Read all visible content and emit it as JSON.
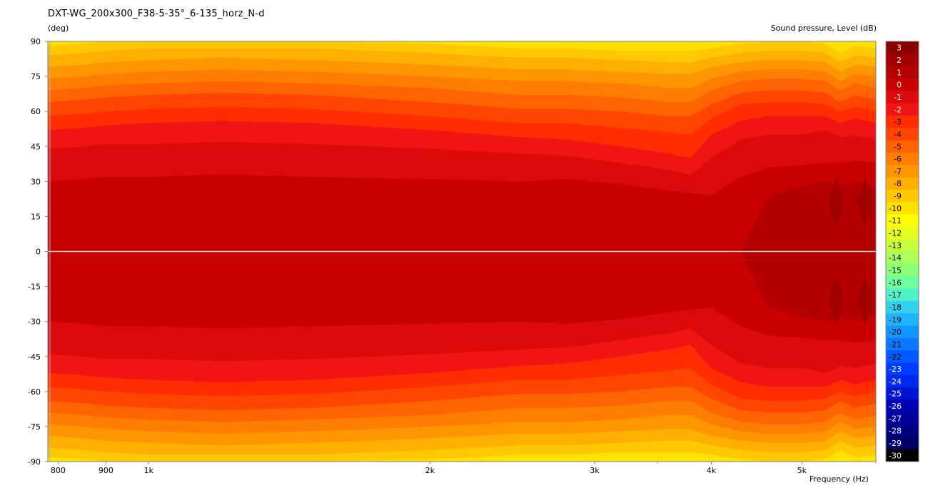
{
  "chart_data": {
    "type": "heatmap",
    "title": "DXT-WG_200x300_F38-5-35°_6-135_horz_N-d",
    "ylabel": "(deg)",
    "xlabel": "Frequency  (Hz)",
    "colorbar_label": "Sound pressure, Level  (dB)",
    "x_scale": "log",
    "xlim": [
      780,
      6000
    ],
    "ylim": [
      -90,
      90
    ],
    "x_ticks": [
      {
        "value": 800,
        "label": "800"
      },
      {
        "value": 900,
        "label": "900"
      },
      {
        "value": 1000,
        "label": "1k"
      },
      {
        "value": 2000,
        "label": "2k"
      },
      {
        "value": 3000,
        "label": "3k"
      },
      {
        "value": 4000,
        "label": "4k"
      },
      {
        "value": 5000,
        "label": "5k"
      }
    ],
    "y_ticks": [
      90,
      75,
      60,
      45,
      30,
      15,
      0,
      -15,
      -30,
      -45,
      -60,
      -75,
      -90
    ],
    "y_tick_labels": [
      "90",
      "75",
      "60",
      "45",
      "30",
      "15",
      "0",
      "-15",
      "-30",
      "-45",
      "-60",
      "-75",
      "-90"
    ],
    "colorbar": {
      "levels": [
        3,
        2,
        1,
        0,
        -1,
        -2,
        -3,
        -4,
        -5,
        -6,
        -7,
        -8,
        -9,
        -10,
        -11,
        -12,
        -13,
        -14,
        -15,
        -16,
        -17,
        -18,
        -19,
        -20,
        -21,
        -22,
        -23,
        -24,
        -25,
        -26,
        -27,
        -28,
        -29,
        -30
      ],
      "labels": [
        "3",
        "2",
        "1",
        "0",
        "-1",
        "-2",
        "-3",
        "-4",
        "-5",
        "-6",
        "-7",
        "-8",
        "-9",
        "-10",
        "-11",
        "-12",
        "-13",
        "-14",
        "-15",
        "-16",
        "-17",
        "-18",
        "-19",
        "-20",
        "-21",
        "-22",
        "-23",
        "-24",
        "-25",
        "-26",
        "-27",
        "-28",
        "-29",
        "-30"
      ],
      "colors": [
        "#8b0000",
        "#a00000",
        "#b40000",
        "#c80000",
        "#dc0a0a",
        "#f01414",
        "#ff2d00",
        "#ff4600",
        "#ff6400",
        "#ff7d00",
        "#ff9600",
        "#ffaf00",
        "#ffc800",
        "#ffe100",
        "#ffff00",
        "#e6ff1e",
        "#c8ff3c",
        "#aaff5a",
        "#8cff78",
        "#6effa0",
        "#50f0c8",
        "#32d2f0",
        "#1eb4ff",
        "#1496ff",
        "#0a78ff",
        "#005aff",
        "#003cff",
        "#0028f0",
        "#0014d2",
        "#0000b4",
        "#00009b",
        "#000082",
        "#000064",
        "#000000"
      ]
    },
    "contours": {
      "freqs": [
        780,
        850,
        900,
        1000,
        1200,
        1500,
        2000,
        2500,
        2800,
        3200,
        3600,
        3800,
        4000,
        4300,
        4600,
        5000,
        5300,
        5500,
        5700,
        6000
      ],
      "boundaries": [
        {
          "level": 1,
          "angles": [
            0,
            0,
            0,
            0,
            0,
            0,
            0,
            0,
            0,
            0,
            0,
            0,
            0,
            0,
            24,
            28,
            30,
            28,
            30,
            28
          ]
        },
        {
          "level": 0,
          "angles": [
            30,
            31,
            32,
            32,
            33,
            32,
            31,
            30,
            31,
            29,
            26,
            25,
            24,
            32,
            36,
            37,
            38,
            38,
            39,
            38
          ]
        },
        {
          "level": -1,
          "angles": [
            44,
            45,
            46,
            46,
            47,
            46,
            44,
            42,
            41,
            38,
            35,
            33,
            40,
            48,
            50,
            50,
            52,
            49,
            50,
            48
          ]
        },
        {
          "level": -2,
          "angles": [
            52,
            53,
            54,
            55,
            56,
            55,
            52,
            49,
            48,
            45,
            42,
            40,
            50,
            56,
            58,
            58,
            58,
            55,
            57,
            55
          ]
        },
        {
          "level": -3,
          "angles": [
            58,
            59,
            60,
            61,
            62,
            61,
            58,
            55,
            55,
            53,
            51,
            50,
            57,
            63,
            64,
            64,
            63,
            60,
            62,
            60
          ]
        },
        {
          "level": -4,
          "angles": [
            64,
            65,
            66,
            67,
            68,
            67,
            64,
            61,
            61,
            60,
            58,
            58,
            63,
            68,
            69,
            69,
            68,
            64,
            67,
            65
          ]
        },
        {
          "level": -5,
          "angles": [
            69,
            70,
            71,
            72,
            73,
            72,
            70,
            67,
            67,
            66,
            64,
            64,
            69,
            73,
            74,
            74,
            73,
            69,
            72,
            70
          ]
        },
        {
          "level": -6,
          "angles": [
            74,
            75,
            76,
            77,
            78,
            77,
            75,
            73,
            73,
            72,
            70,
            70,
            74,
            77,
            78,
            78,
            77,
            73,
            76,
            75
          ]
        },
        {
          "level": -7,
          "angles": [
            79,
            80,
            81,
            82,
            83,
            82,
            80,
            78,
            78,
            77,
            76,
            76,
            79,
            81,
            82,
            82,
            81,
            77,
            80,
            79
          ]
        },
        {
          "level": -8,
          "angles": [
            84,
            85,
            86,
            87,
            87,
            87,
            85,
            83,
            83,
            82,
            81,
            81,
            83,
            85,
            86,
            86,
            85,
            81,
            84,
            83
          ]
        },
        {
          "level": -9,
          "angles": [
            88,
            89,
            90,
            90,
            90,
            90,
            89,
            87,
            87,
            86,
            86,
            86,
            87,
            89,
            90,
            90,
            89,
            85,
            88,
            87
          ]
        }
      ]
    },
    "peak_spots": [
      {
        "freq": 5450,
        "angle": 21,
        "level": 2
      },
      {
        "freq": 5850,
        "angle": 21,
        "level": 2
      },
      {
        "freq": 5450,
        "angle": -21,
        "level": 2
      },
      {
        "freq": 5850,
        "angle": -21,
        "level": 2
      }
    ]
  }
}
